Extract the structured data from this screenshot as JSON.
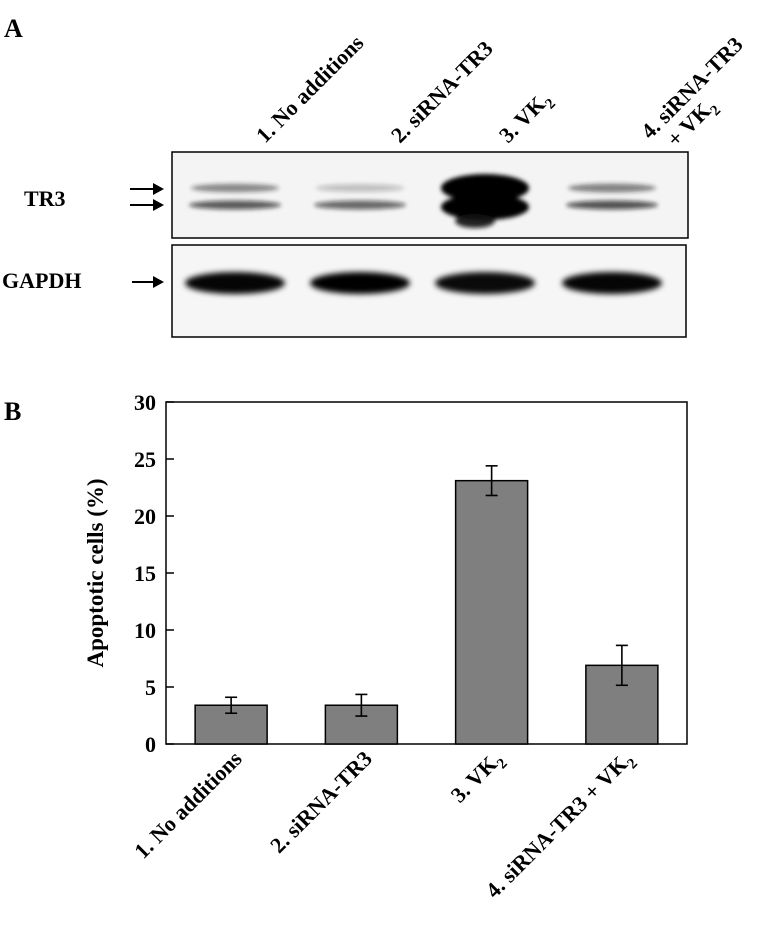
{
  "panel_a": {
    "label": "A",
    "lanes": [
      {
        "main": "1. No additions",
        "sub": ""
      },
      {
        "main": "2. siRNA-TR3",
        "sub": ""
      },
      {
        "main": "3. VK",
        "sub": "2"
      },
      {
        "main": "4. siRNA-TR3",
        "sub": "",
        "line2": "+ VK",
        "line2_sub": "2"
      }
    ],
    "blots": [
      {
        "label": "TR3",
        "arrows": 2,
        "lane_intensity": [
          0.55,
          0.45,
          1.0,
          0.6
        ]
      },
      {
        "label": "GAPDH",
        "arrows": 1,
        "lane_intensity": [
          0.95,
          1.0,
          0.9,
          0.95
        ]
      }
    ]
  },
  "panel_b": {
    "label": "B"
  },
  "chart_data": {
    "type": "bar",
    "categories": [
      {
        "main": "1. No additions",
        "sub": "",
        "suffix": ""
      },
      {
        "main": "2. siRNA-TR3",
        "sub": "",
        "suffix": ""
      },
      {
        "main": "3. VK",
        "sub": "2",
        "suffix": ""
      },
      {
        "main": "4. siRNA-TR3 + VK",
        "sub": "2",
        "suffix": ""
      }
    ],
    "values": [
      3.4,
      3.4,
      23.1,
      6.9
    ],
    "errors": [
      0.7,
      0.95,
      1.3,
      1.75
    ],
    "ylabel": "Apoptotic cells (%)",
    "ylim": [
      0,
      30
    ],
    "yticks": [
      0,
      5,
      10,
      15,
      20,
      25,
      30
    ],
    "bar_color": "#7f7f7f",
    "grid": false
  }
}
